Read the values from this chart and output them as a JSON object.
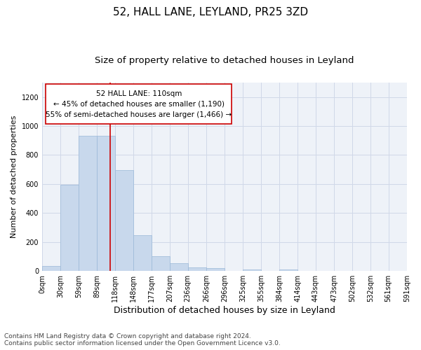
{
  "title": "52, HALL LANE, LEYLAND, PR25 3ZD",
  "subtitle": "Size of property relative to detached houses in Leyland",
  "xlabel": "Distribution of detached houses by size in Leyland",
  "ylabel": "Number of detached properties",
  "bar_color": "#c8d8ec",
  "bar_edge_color": "#9ab8d8",
  "grid_color": "#d0d8e8",
  "bg_color": "#eef2f8",
  "annotation_box_color": "#cc0000",
  "annotation_text": "52 HALL LANE: 110sqm\n← 45% of detached houses are smaller (1,190)\n55% of semi-detached houses are larger (1,466) →",
  "vline_x": 110,
  "vline_color": "#cc0000",
  "bin_edges": [
    0,
    30,
    59,
    89,
    118,
    148,
    177,
    207,
    236,
    266,
    296,
    325,
    355,
    384,
    414,
    443,
    473,
    502,
    532,
    561,
    591
  ],
  "bar_heights": [
    35,
    595,
    930,
    930,
    695,
    245,
    100,
    55,
    25,
    20,
    0,
    10,
    0,
    10,
    0,
    0,
    0,
    0,
    0,
    0
  ],
  "ylim": [
    0,
    1300
  ],
  "yticks": [
    0,
    200,
    400,
    600,
    800,
    1000,
    1200
  ],
  "footnote": "Contains HM Land Registry data © Crown copyright and database right 2024.\nContains public sector information licensed under the Open Government Licence v3.0.",
  "title_fontsize": 11,
  "subtitle_fontsize": 9.5,
  "xlabel_fontsize": 9,
  "ylabel_fontsize": 8,
  "tick_fontsize": 7,
  "annot_fontsize": 7.5,
  "footnote_fontsize": 6.5
}
